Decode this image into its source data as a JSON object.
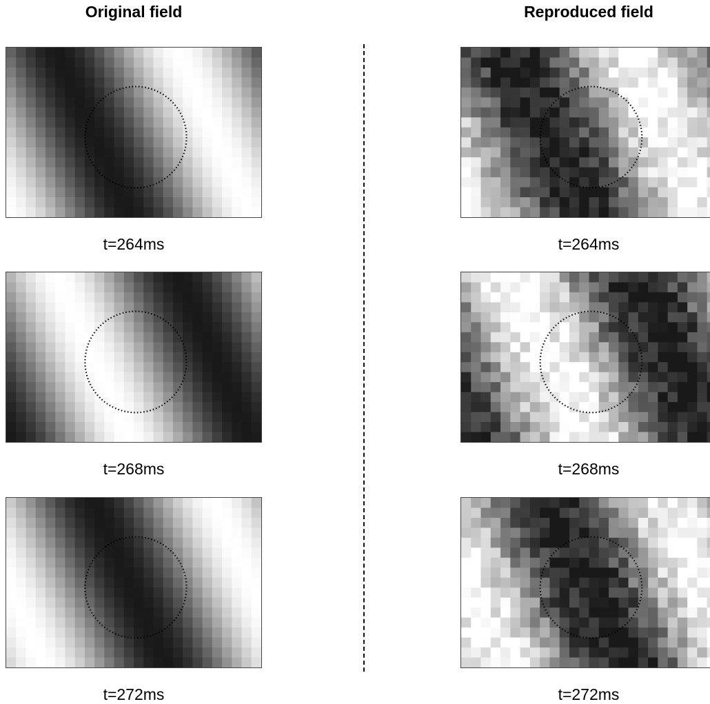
{
  "titles": {
    "original": "Original field",
    "reproduced": "Reproduced field"
  },
  "columns": [
    {
      "id": "original",
      "panels": [
        {
          "caption": "t=264ms",
          "pattern": "dark-band",
          "phase": 0.0
        },
        {
          "caption": "t=268ms",
          "pattern": "light-band",
          "phase": 0.5
        },
        {
          "caption": "t=272ms",
          "pattern": "dark-band-shifted",
          "phase": 0.15
        }
      ]
    },
    {
      "id": "reproduced",
      "panels": [
        {
          "caption": "t=264ms",
          "pattern": "dark-band",
          "phase": 0.0
        },
        {
          "caption": "t=268ms",
          "pattern": "light-band",
          "phase": 0.5
        },
        {
          "caption": "t=272ms",
          "pattern": "dark-band-shifted",
          "phase": 0.15
        }
      ]
    }
  ],
  "grid": {
    "cols": 26,
    "rows": 17
  },
  "marker": {
    "shape": "dotted-circle",
    "color": "#000000"
  }
}
